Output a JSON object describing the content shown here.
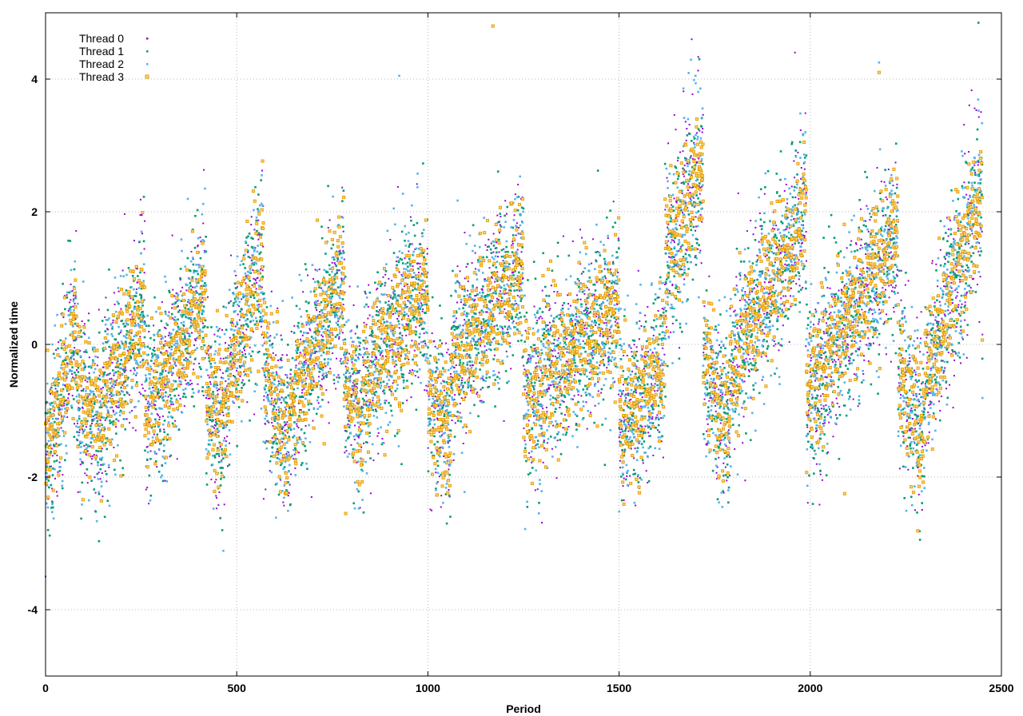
{
  "chart_data": {
    "type": "scatter",
    "title": "",
    "xlabel": "Period",
    "ylabel": "Normalized time",
    "xlim": [
      0,
      2500
    ],
    "ylim": [
      -5,
      5
    ],
    "x_ticks": [
      0,
      500,
      1000,
      1500,
      2000,
      2500
    ],
    "y_ticks": [
      -4,
      -2,
      0,
      2,
      4
    ],
    "grid": true,
    "legend_position": "top-left",
    "series": [
      {
        "name": "Thread 0",
        "color": "#9400d3",
        "marker": "dot"
      },
      {
        "name": "Thread 1",
        "color": "#009e73",
        "marker": "small-square"
      },
      {
        "name": "Thread 2",
        "color": "#56b4e9",
        "marker": "small-square"
      },
      {
        "name": "Thread 3",
        "color": "#e69f00",
        "marker": "open-square"
      }
    ],
    "trend_segments": [
      {
        "x": [
          0,
          80
        ],
        "y": [
          -1.8,
          0.3
        ]
      },
      {
        "x": [
          80,
          150
        ],
        "y": [
          -0.6,
          -1.3
        ]
      },
      {
        "x": [
          150,
          260
        ],
        "y": [
          -0.9,
          0.6
        ]
      },
      {
        "x": [
          260,
          300
        ],
        "y": [
          -1.0,
          -0.8
        ]
      },
      {
        "x": [
          300,
          420
        ],
        "y": [
          -0.8,
          0.9
        ]
      },
      {
        "x": [
          420,
          470
        ],
        "y": [
          -0.8,
          -1.2
        ]
      },
      {
        "x": [
          470,
          570
        ],
        "y": [
          -0.6,
          1.3
        ]
      },
      {
        "x": [
          570,
          640
        ],
        "y": [
          -0.4,
          -1.5
        ]
      },
      {
        "x": [
          640,
          780
        ],
        "y": [
          -1.0,
          1.0
        ]
      },
      {
        "x": [
          780,
          830
        ],
        "y": [
          -0.4,
          -1.3
        ]
      },
      {
        "x": [
          830,
          1000
        ],
        "y": [
          -0.6,
          1.0
        ]
      },
      {
        "x": [
          1000,
          1060
        ],
        "y": [
          -0.8,
          -1.4
        ]
      },
      {
        "x": [
          1060,
          1250
        ],
        "y": [
          -0.3,
          1.2
        ]
      },
      {
        "x": [
          1250,
          1500
        ],
        "y": [
          -0.8,
          0.6
        ]
      },
      {
        "x": [
          1500,
          1620
        ],
        "y": [
          -1.2,
          -0.3
        ]
      },
      {
        "x": [
          1620,
          1720
        ],
        "y": [
          1.2,
          2.7
        ]
      },
      {
        "x": [
          1720,
          1790
        ],
        "y": [
          -0.2,
          -1.3
        ]
      },
      {
        "x": [
          1790,
          1990
        ],
        "y": [
          -0.3,
          2.0
        ]
      },
      {
        "x": [
          1990,
          2230
        ],
        "y": [
          -0.8,
          1.7
        ]
      },
      {
        "x": [
          2230,
          2300
        ],
        "y": [
          -0.5,
          -1.3
        ]
      },
      {
        "x": [
          2300,
          2450
        ],
        "y": [
          -0.6,
          2.3
        ]
      }
    ],
    "noise_sd": 0.65,
    "outliers": [
      {
        "x": 0,
        "y": -3.5
      },
      {
        "x": 155,
        "y": -2.6
      },
      {
        "x": 925,
        "y": 4.05
      },
      {
        "x": 1170,
        "y": 4.8
      },
      {
        "x": 1690,
        "y": 4.6
      },
      {
        "x": 2440,
        "y": 4.85
      },
      {
        "x": 2180,
        "y": 4.25
      },
      {
        "x": 2180,
        "y": 4.1
      },
      {
        "x": 1960,
        "y": 4.4
      },
      {
        "x": 1710,
        "y": 4.3
      },
      {
        "x": 1700,
        "y": 4.05
      },
      {
        "x": 785,
        "y": -2.55
      },
      {
        "x": 270,
        "y": -2.4
      },
      {
        "x": 1260,
        "y": -2.45
      },
      {
        "x": 1770,
        "y": -2.45
      },
      {
        "x": 2090,
        "y": -2.25
      }
    ]
  }
}
